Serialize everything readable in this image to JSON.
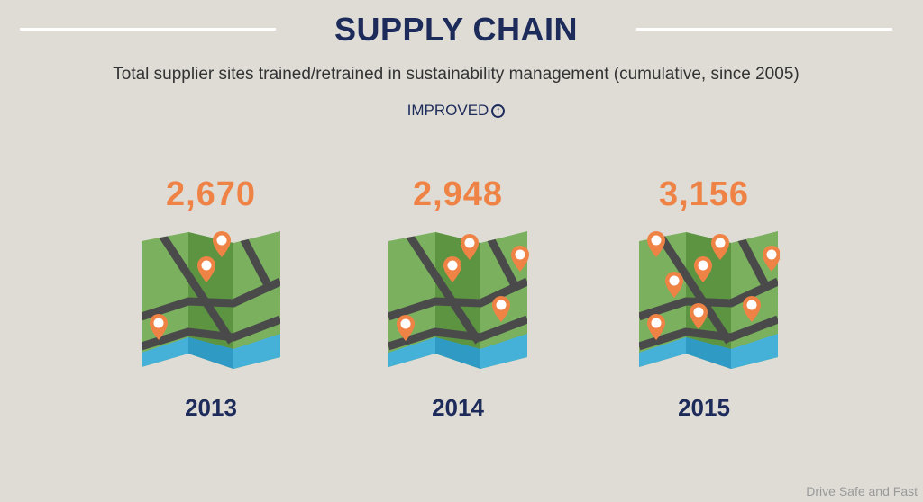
{
  "header": {
    "title": "SUPPLY CHAIN",
    "subtitle": "Total supplier sites trained/retrained in sustainability management (cumulative, since 2005)",
    "status": "IMPROVED",
    "status_icon": "arrow-up-circle-icon"
  },
  "years": [
    {
      "year": "2013",
      "value": "2,670"
    },
    {
      "year": "2014",
      "value": "2,948"
    },
    {
      "year": "2015",
      "value": "3,156"
    }
  ],
  "colors": {
    "navy": "#1d2b5b",
    "orange": "#ef8345",
    "green": "#7ab05e",
    "water": "#45b0d8",
    "road": "#4a4a4a"
  },
  "watermark": "Drive Safe and Fast"
}
